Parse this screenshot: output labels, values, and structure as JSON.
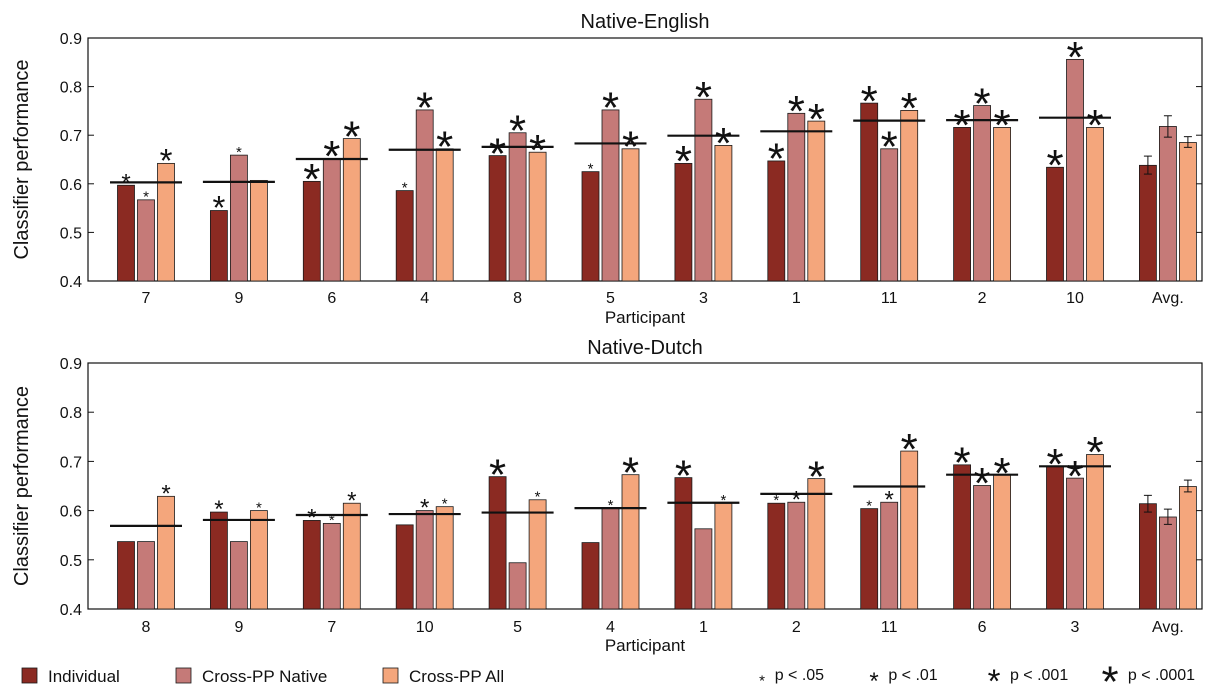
{
  "colors": {
    "individual": "#8B2A22",
    "cross_pp_native": "#C57A78",
    "cross_pp_all": "#F4A67C",
    "bar_stroke": "#1a1a1a",
    "axis": "#111111"
  },
  "legend": {
    "series": [
      {
        "key": "individual",
        "label": "Individual"
      },
      {
        "key": "cross_pp_native",
        "label": "Cross-PP Native"
      },
      {
        "key": "cross_pp_all",
        "label": "Cross-PP All"
      }
    ],
    "significance": [
      {
        "level": 1,
        "label": "p < .05"
      },
      {
        "level": 2,
        "label": "p < .01"
      },
      {
        "level": 3,
        "label": "p < .001"
      },
      {
        "level": 4,
        "label": "p < .0001"
      }
    ]
  },
  "chart_data": [
    {
      "type": "bar",
      "title": "Native-English",
      "xlabel": "Participant",
      "ylabel": "Classifier performance",
      "ylim": [
        0.4,
        0.9
      ],
      "yticks": [
        "0.4",
        "0.5",
        "0.6",
        "0.7",
        "0.8",
        "0.9"
      ],
      "categories": [
        "7",
        "9",
        "6",
        "4",
        "8",
        "5",
        "3",
        "1",
        "11",
        "2",
        "10",
        "Avg."
      ],
      "series": [
        {
          "name": "Individual",
          "values": [
            0.597,
            0.545,
            0.605,
            0.586,
            0.658,
            0.625,
            0.642,
            0.647,
            0.766,
            0.716,
            0.634,
            0.638
          ]
        },
        {
          "name": "Cross-PP Native",
          "values": [
            0.567,
            0.659,
            0.652,
            0.752,
            0.705,
            0.752,
            0.774,
            0.745,
            0.672,
            0.761,
            0.856,
            0.718
          ]
        },
        {
          "name": "Cross-PP All",
          "values": [
            0.642,
            0.607,
            0.693,
            0.672,
            0.665,
            0.672,
            0.679,
            0.729,
            0.751,
            0.716,
            0.716,
            0.685
          ]
        }
      ],
      "chance_levels": [
        0.603,
        0.604,
        0.651,
        0.67,
        0.676,
        0.683,
        0.699,
        0.708,
        0.73,
        0.731,
        0.736,
        null
      ],
      "significance": [
        [
          2,
          1,
          3
        ],
        [
          3,
          1,
          0
        ],
        [
          4,
          4,
          4
        ],
        [
          1,
          4,
          4
        ],
        [
          4,
          4,
          4
        ],
        [
          1,
          4,
          4
        ],
        [
          4,
          4,
          4
        ],
        [
          4,
          4,
          4
        ],
        [
          4,
          4,
          4
        ],
        [
          4,
          4,
          4
        ],
        [
          4,
          4,
          4
        ],
        [
          0,
          0,
          0
        ]
      ],
      "error_bars": [
        [
          0.62,
          0.657
        ],
        [
          0.696,
          0.74
        ],
        [
          0.675,
          0.697
        ]
      ]
    },
    {
      "type": "bar",
      "title": "Native-Dutch",
      "xlabel": "Participant",
      "ylabel": "Classifier performance",
      "ylim": [
        0.4,
        0.9
      ],
      "yticks": [
        "0.4",
        "0.5",
        "0.6",
        "0.7",
        "0.8",
        "0.9"
      ],
      "categories": [
        "8",
        "9",
        "7",
        "10",
        "5",
        "4",
        "1",
        "2",
        "11",
        "6",
        "3",
        "Avg."
      ],
      "series": [
        {
          "name": "Individual",
          "values": [
            0.537,
            0.597,
            0.58,
            0.571,
            0.669,
            0.535,
            0.667,
            0.615,
            0.604,
            0.693,
            0.69,
            0.614
          ]
        },
        {
          "name": "Cross-PP Native",
          "values": [
            0.537,
            0.537,
            0.574,
            0.6,
            0.494,
            0.605,
            0.563,
            0.617,
            0.617,
            0.651,
            0.666,
            0.587
          ]
        },
        {
          "name": "Cross-PP All",
          "values": [
            0.629,
            0.6,
            0.615,
            0.608,
            0.622,
            0.673,
            0.615,
            0.665,
            0.721,
            0.672,
            0.714,
            0.649
          ]
        }
      ],
      "chance_levels": [
        0.569,
        0.581,
        0.591,
        0.593,
        0.596,
        0.605,
        0.616,
        0.634,
        0.649,
        0.673,
        0.69,
        null
      ],
      "significance": [
        [
          0,
          0,
          2
        ],
        [
          2,
          0,
          1
        ],
        [
          2,
          1,
          2
        ],
        [
          0,
          2,
          1
        ],
        [
          4,
          0,
          1
        ],
        [
          0,
          1,
          4
        ],
        [
          4,
          0,
          1
        ],
        [
          1,
          2,
          4
        ],
        [
          1,
          2,
          4
        ],
        [
          4,
          4,
          4
        ],
        [
          4,
          4,
          4
        ],
        [
          0,
          0,
          0
        ]
      ],
      "error_bars": [
        [
          0.597,
          0.631
        ],
        [
          0.572,
          0.603
        ],
        [
          0.638,
          0.662
        ]
      ]
    }
  ]
}
